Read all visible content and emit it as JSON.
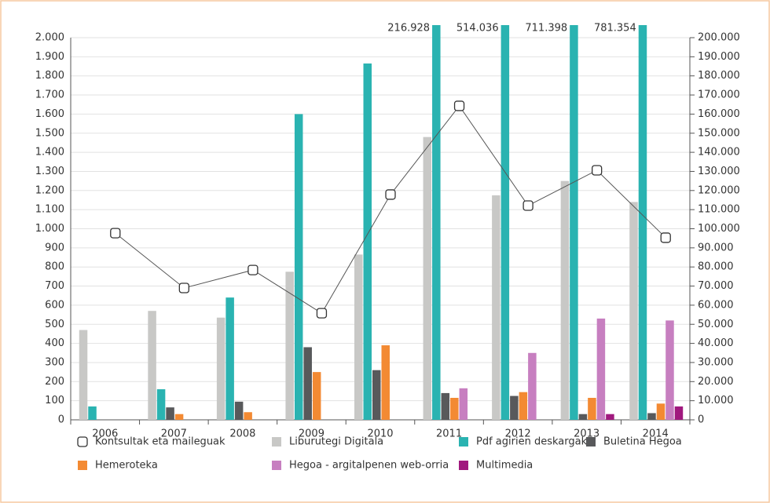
{
  "chart_data": {
    "type": "bar",
    "categories": [
      "2006",
      "2007",
      "2008",
      "2009",
      "2010",
      "2011",
      "2012",
      "2013",
      "2014"
    ],
    "ylim": [
      0,
      2000
    ],
    "yticks": [
      0,
      100,
      200,
      300,
      400,
      500,
      600,
      700,
      800,
      900,
      {
        "value": 1000,
        "label": "1.000"
      },
      {
        "value": 1100,
        "label": "1.100"
      },
      {
        "value": 1200,
        "label": "1.200"
      },
      {
        "value": 1300,
        "label": "1.300"
      },
      {
        "value": 1400,
        "label": "1.400"
      },
      {
        "value": 1500,
        "label": "1.500"
      },
      {
        "value": 1600,
        "label": "1.600"
      },
      {
        "value": 1700,
        "label": "1.700"
      },
      {
        "value": 1800,
        "label": "1.800"
      },
      {
        "value": 1900,
        "label": "1.900"
      },
      {
        "value": 2000,
        "label": "2.000"
      }
    ],
    "y2lim": [
      0,
      200000
    ],
    "y2ticks": [
      0,
      {
        "value": 10000,
        "label": "10.000"
      },
      {
        "value": 20000,
        "label": "20.000"
      },
      {
        "value": 30000,
        "label": "30.000"
      },
      {
        "value": 40000,
        "label": "40.000"
      },
      {
        "value": 50000,
        "label": "50.000"
      },
      {
        "value": 60000,
        "label": "60.000"
      },
      {
        "value": 70000,
        "label": "70.000"
      },
      {
        "value": 80000,
        "label": "80.000"
      },
      {
        "value": 90000,
        "label": "90.000"
      },
      {
        "value": 100000,
        "label": "100.000"
      },
      {
        "value": 110000,
        "label": "110.000"
      },
      {
        "value": 120000,
        "label": "120.000"
      },
      {
        "value": 130000,
        "label": "130.000"
      },
      {
        "value": 140000,
        "label": "140.000"
      },
      {
        "value": 150000,
        "label": "150.000"
      },
      {
        "value": 160000,
        "label": "160.000"
      },
      {
        "value": 170000,
        "label": "170.000"
      },
      {
        "value": 180000,
        "label": "180.000"
      },
      {
        "value": 190000,
        "label": "190.000"
      },
      {
        "value": 200000,
        "label": "200.000"
      }
    ],
    "grid": true,
    "series": [
      {
        "name": "Kontsultak eta maileguak",
        "type": "line",
        "axis": "y2",
        "color": "#555555",
        "values": [
          97700,
          69000,
          78400,
          55800,
          117900,
          164300,
          112100,
          130600,
          95300
        ]
      },
      {
        "name": "Liburutegi Digitala",
        "color": "#c8c8c6",
        "values": [
          470,
          570,
          535,
          775,
          865,
          1480,
          1175,
          1250,
          1140
        ]
      },
      {
        "name": "Pdf agirien deskargak",
        "color": "#2ab3b1",
        "values": [
          70,
          160,
          640,
          1600,
          1865,
          216928,
          514036,
          711398,
          781354
        ],
        "value_labels": [
          null,
          null,
          null,
          null,
          null,
          "216.928",
          "514.036",
          "711.398",
          "781.354"
        ]
      },
      {
        "name": "Buletina Hegoa",
        "color": "#58595b",
        "values": [
          null,
          65,
          95,
          380,
          260,
          140,
          125,
          30,
          35
        ]
      },
      {
        "name": "Hemeroteka",
        "color": "#f38a33",
        "values": [
          null,
          30,
          40,
          250,
          390,
          115,
          145,
          115,
          85
        ]
      },
      {
        "name": "Hegoa - argitalpenen web-orria",
        "color": "#c77fc0",
        "values": [
          null,
          null,
          null,
          null,
          null,
          165,
          350,
          530,
          520
        ]
      },
      {
        "name": "Multimedia",
        "color": "#a0197e",
        "values": [
          null,
          null,
          null,
          null,
          null,
          null,
          null,
          30,
          70
        ]
      }
    ]
  }
}
